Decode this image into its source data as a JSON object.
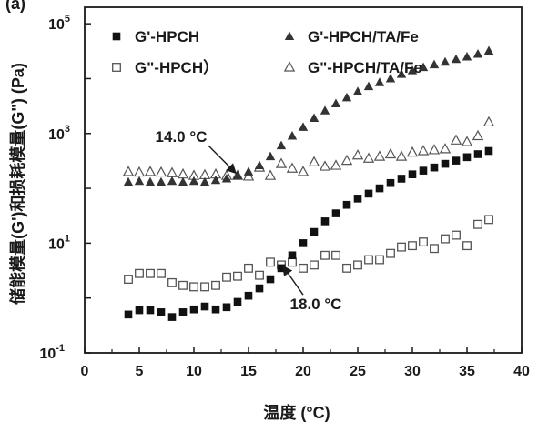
{
  "chart_data": {
    "type": "scatter",
    "panel_label": "(a)",
    "xlabel": "温度 (°C)",
    "ylabel": "储能模量(G')和损耗模量(G\") (Pa)",
    "xlim": [
      0,
      40
    ],
    "ylim": [
      0.1,
      200000
    ],
    "yscale": "log",
    "xticks": [
      0,
      5,
      10,
      15,
      20,
      25,
      30,
      35,
      40
    ],
    "yticks": [
      {
        "value": 0.1,
        "base": "10",
        "exp": "-1"
      },
      {
        "value": 10,
        "base": "10",
        "exp": "1"
      },
      {
        "value": 1000,
        "base": "10",
        "exp": "3"
      },
      {
        "value": 100000,
        "base": "10",
        "exp": "5"
      }
    ],
    "x": [
      4,
      5,
      6,
      7,
      8,
      9,
      10,
      11,
      12,
      13,
      14,
      15,
      16,
      17,
      18,
      19,
      20,
      21,
      22,
      23,
      24,
      25,
      26,
      27,
      28,
      29,
      30,
      31,
      32,
      33,
      34,
      35,
      36,
      37
    ],
    "series": [
      {
        "name": "G'-HPCH",
        "marker": "square-filled",
        "color": "#111111",
        "values": [
          0.5,
          0.6,
          0.6,
          0.55,
          0.45,
          0.55,
          0.62,
          0.7,
          0.62,
          0.68,
          0.85,
          1.1,
          1.5,
          2.2,
          3.5,
          6,
          10,
          16,
          25,
          35,
          50,
          65,
          80,
          100,
          125,
          150,
          180,
          210,
          240,
          280,
          320,
          370,
          420,
          480
        ]
      },
      {
        "name": "G\"-HPCH）",
        "marker": "square-open",
        "color": "#555555",
        "values": [
          2.2,
          2.8,
          2.8,
          2.8,
          1.9,
          1.7,
          1.6,
          1.6,
          1.7,
          2.4,
          2.5,
          3.5,
          2.6,
          4.5,
          4.0,
          4.5,
          3.5,
          4.0,
          6.0,
          6.0,
          3.5,
          4.0,
          5.0,
          5.0,
          6.5,
          8.5,
          9.0,
          10.5,
          8.0,
          12.0,
          14.0,
          9.0,
          22.0,
          27.0
        ]
      },
      {
        "name": "G'-HPCH/TA/Fe",
        "marker": "triangle-filled",
        "color": "#333333",
        "values": [
          130,
          135,
          130,
          130,
          135,
          130,
          135,
          130,
          140,
          150,
          170,
          200,
          260,
          380,
          600,
          900,
          1300,
          1900,
          2600,
          3500,
          4500,
          5800,
          7200,
          8500,
          10000,
          12000,
          14000,
          16000,
          18000,
          20000,
          22500,
          25000,
          28000,
          32000
        ]
      },
      {
        "name": "G\"-HPCH/TA/Fe",
        "marker": "triangle-open",
        "color": "#555555",
        "values": [
          200,
          195,
          200,
          195,
          190,
          180,
          170,
          175,
          180,
          170,
          170,
          165,
          240,
          170,
          280,
          230,
          200,
          300,
          250,
          260,
          320,
          400,
          350,
          380,
          420,
          380,
          450,
          480,
          500,
          520,
          750,
          700,
          900,
          1600
        ]
      }
    ],
    "annotations": [
      {
        "text": "14.0 °C",
        "x": 14.0
      },
      {
        "text": "18.0 °C",
        "x": 18.0
      }
    ],
    "legend": "top, two columns",
    "grid": false
  }
}
